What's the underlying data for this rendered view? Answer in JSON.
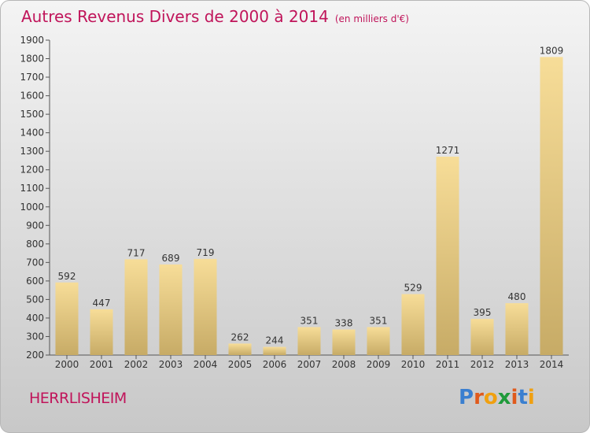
{
  "header": {
    "title": "Autres Revenus Divers de 2000 à 2014",
    "subtitle": "(en milliers d'€)"
  },
  "footer": {
    "commune": "HERRLISHEIM",
    "logo": "Proxiti"
  },
  "colors": {
    "title": "#c0145a",
    "bar_light": "#f7dd98",
    "bar_dark": "#c7ab66",
    "logo_letters": [
      "#3a7fd0",
      "#e05a1c",
      "#f0a010",
      "#1f9a3a",
      "#e05a1c",
      "#3a7fd0",
      "#f0a010"
    ]
  },
  "chart_data": {
    "type": "bar",
    "title": "Autres Revenus Divers de 2000 à 2014",
    "subtitle": "(en milliers d'€)",
    "categories": [
      "2000",
      "2001",
      "2002",
      "2003",
      "2004",
      "2005",
      "2006",
      "2007",
      "2008",
      "2009",
      "2010",
      "2011",
      "2012",
      "2013",
      "2014"
    ],
    "values": [
      592,
      447,
      717,
      689,
      719,
      262,
      244,
      351,
      338,
      351,
      529,
      1271,
      395,
      480,
      1809
    ],
    "ylim": [
      200,
      1900
    ],
    "yticks": [
      200,
      300,
      400,
      500,
      600,
      700,
      800,
      900,
      1000,
      1100,
      1200,
      1300,
      1400,
      1500,
      1600,
      1700,
      1800,
      1900
    ],
    "xlabel": "",
    "ylabel": "",
    "grid": false
  }
}
